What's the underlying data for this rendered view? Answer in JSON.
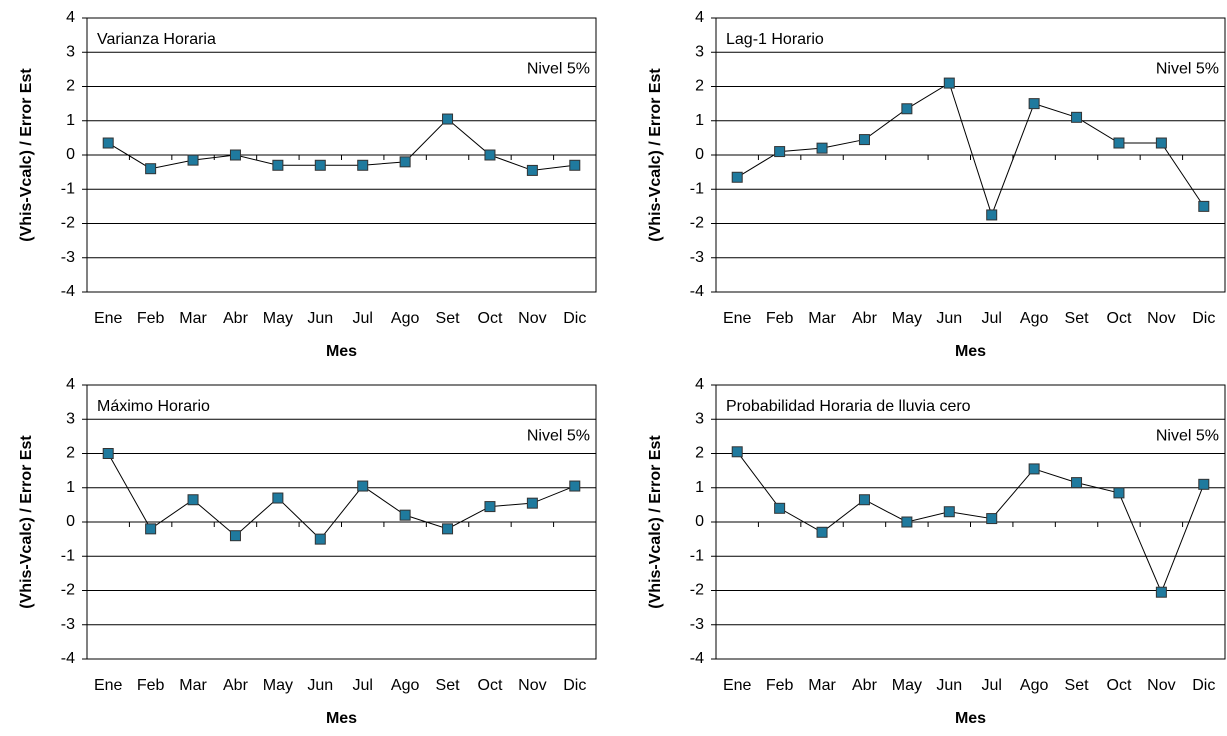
{
  "chart_data": [
    {
      "type": "line",
      "title": "Varianza Horaria",
      "annotation": "Nivel 5%",
      "x_label": "Mes",
      "y_label": "(Vhis-Vcalc) / Error Est",
      "categories": [
        "Ene",
        "Feb",
        "Mar",
        "Abr",
        "May",
        "Jun",
        "Jul",
        "Ago",
        "Set",
        "Oct",
        "Nov",
        "Dic"
      ],
      "values": [
        0.35,
        -0.4,
        -0.15,
        0.0,
        -0.3,
        -0.3,
        -0.3,
        -0.2,
        1.05,
        0.0,
        -0.45,
        -0.3
      ],
      "color": "#1f7a9e",
      "ylim": [
        -4,
        4
      ],
      "yticks": [
        -4,
        -3,
        -2,
        -1,
        0,
        1,
        2,
        3,
        4
      ],
      "grid": true
    },
    {
      "type": "line",
      "title": "Lag-1 Horario",
      "annotation": "Nivel 5%",
      "x_label": "Mes",
      "y_label": "(Vhis-Vcalc) / Error Est",
      "categories": [
        "Ene",
        "Feb",
        "Mar",
        "Abr",
        "May",
        "Jun",
        "Jul",
        "Ago",
        "Set",
        "Oct",
        "Nov",
        "Dic"
      ],
      "values": [
        -0.65,
        0.1,
        0.2,
        0.45,
        1.35,
        2.1,
        -1.75,
        1.5,
        1.1,
        0.35,
        0.35,
        -1.5
      ],
      "color": "#1f7a9e",
      "ylim": [
        -4,
        4
      ],
      "yticks": [
        -4,
        -3,
        -2,
        -1,
        0,
        1,
        2,
        3,
        4
      ],
      "grid": true
    },
    {
      "type": "line",
      "title": "Máximo Horario",
      "annotation": "Nivel 5%",
      "x_label": "Mes",
      "y_label": "(Vhis-Vcalc) / Error Est",
      "categories": [
        "Ene",
        "Feb",
        "Mar",
        "Abr",
        "May",
        "Jun",
        "Jul",
        "Ago",
        "Set",
        "Oct",
        "Nov",
        "Dic"
      ],
      "values": [
        2.0,
        -0.2,
        0.65,
        -0.4,
        0.7,
        -0.5,
        1.05,
        0.2,
        -0.2,
        0.45,
        0.55,
        1.05
      ],
      "color": "#1f7a9e",
      "ylim": [
        -4,
        4
      ],
      "yticks": [
        -4,
        -3,
        -2,
        -1,
        0,
        1,
        2,
        3,
        4
      ],
      "grid": true
    },
    {
      "type": "line",
      "title": "Probabilidad Horaria de lluvia cero",
      "annotation": "Nivel 5%",
      "x_label": "Mes",
      "y_label": "(Vhis-Vcalc) / Error Est",
      "categories": [
        "Ene",
        "Feb",
        "Mar",
        "Abr",
        "May",
        "Jun",
        "Jul",
        "Ago",
        "Set",
        "Oct",
        "Nov",
        "Dic"
      ],
      "values": [
        2.05,
        0.4,
        -0.3,
        0.65,
        0.0,
        0.3,
        0.1,
        1.55,
        1.15,
        0.85,
        -2.05,
        1.1
      ],
      "color": "#1f7a9e",
      "ylim": [
        -4,
        4
      ],
      "yticks": [
        -4,
        -3,
        -2,
        -1,
        0,
        1,
        2,
        3,
        4
      ],
      "grid": true
    }
  ]
}
